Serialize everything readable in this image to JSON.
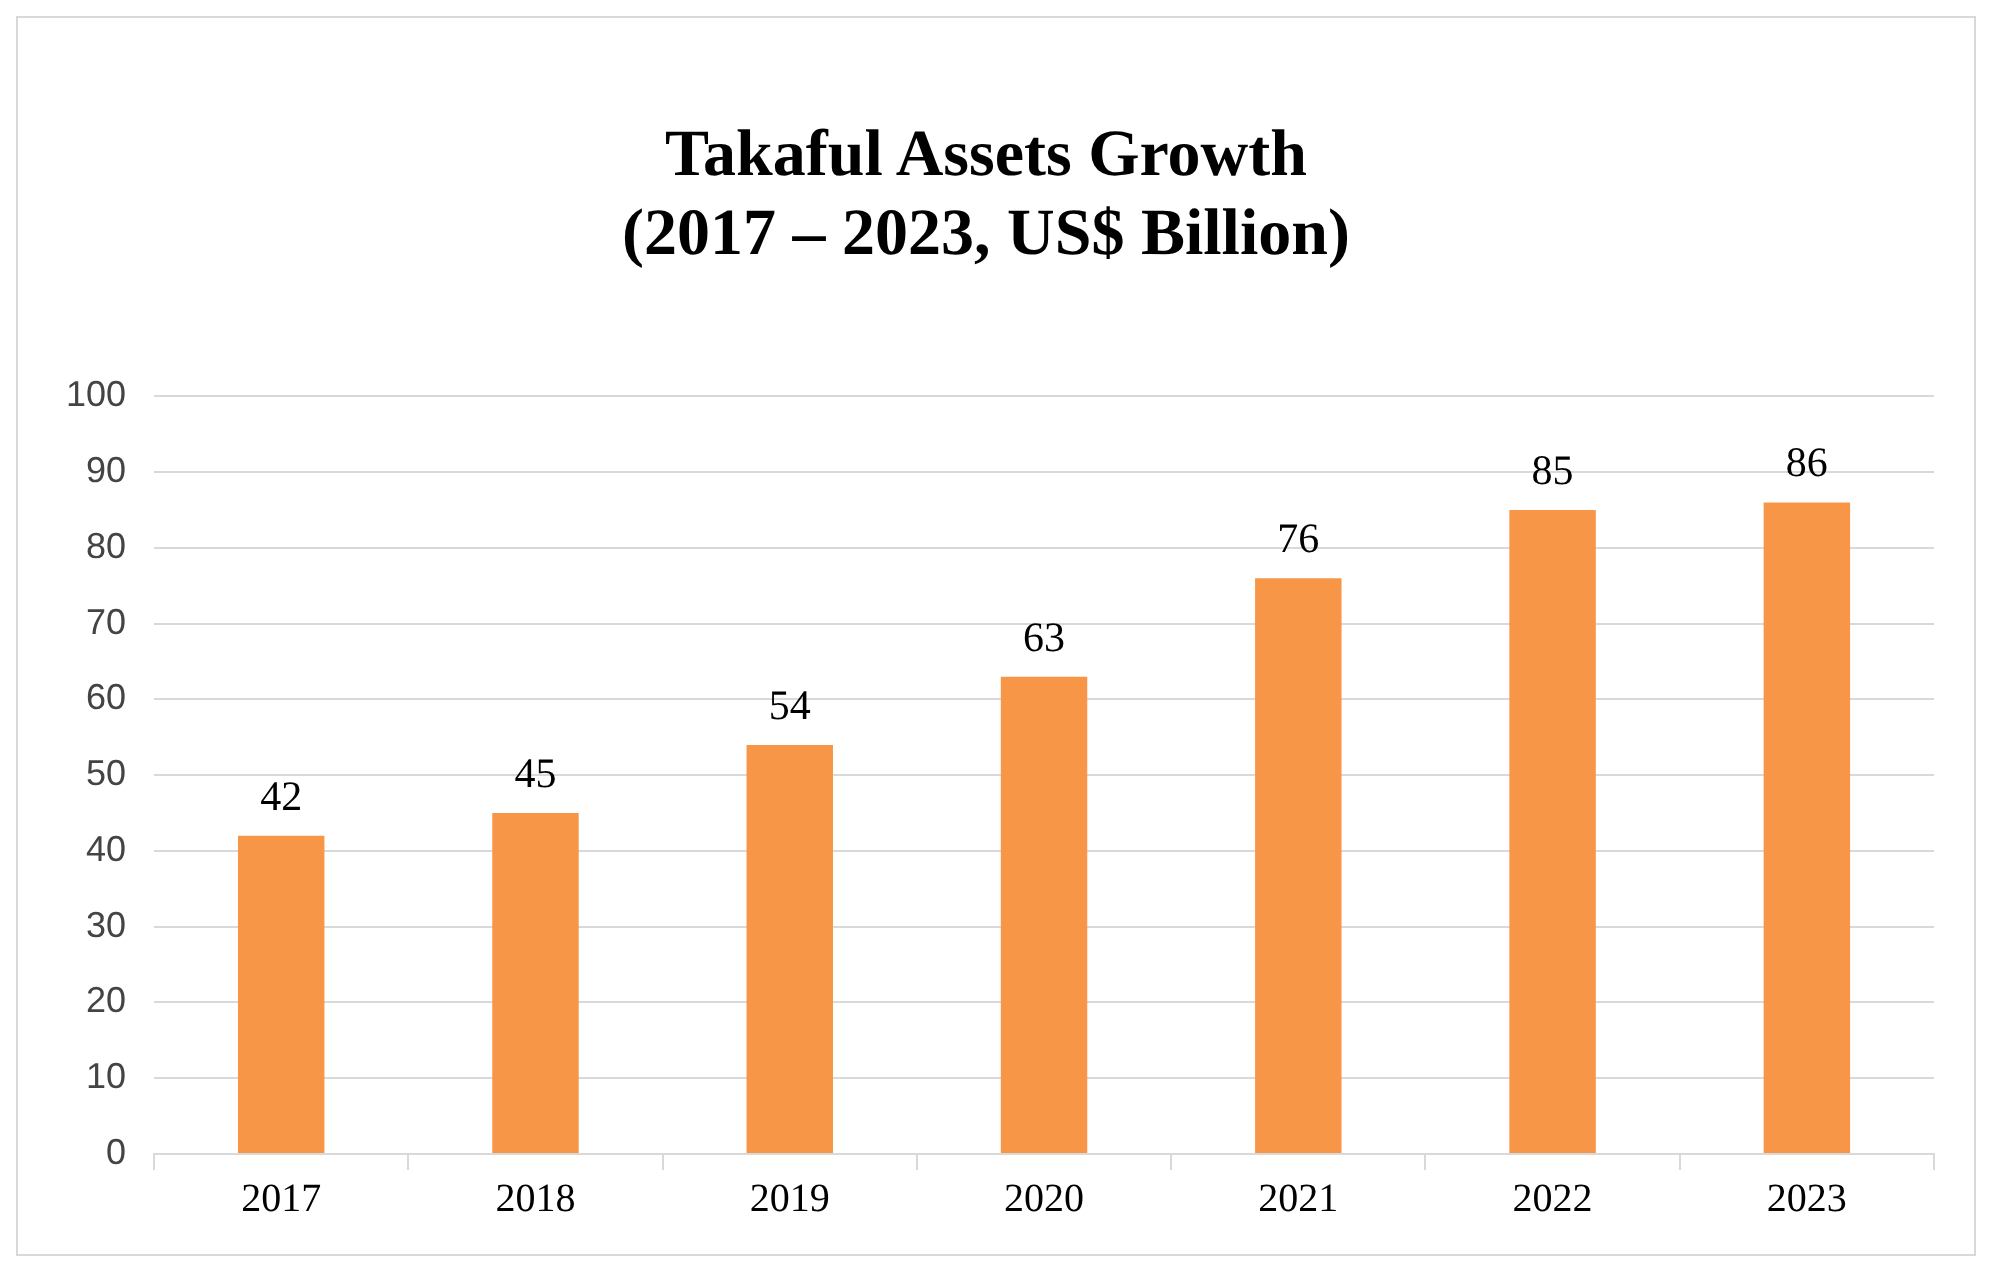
{
  "chart_data": {
    "type": "bar",
    "title": [
      "Takaful Assets Growth",
      "(2017 – 2023, US$ Billion)"
    ],
    "categories": [
      "2017",
      "2018",
      "2019",
      "2020",
      "2021",
      "2022",
      "2023"
    ],
    "values": [
      42,
      45,
      54,
      63,
      76,
      85,
      86
    ],
    "color": "#f79646",
    "ylim": [
      0,
      100
    ],
    "yticks": [
      0,
      10,
      20,
      30,
      40,
      50,
      60,
      70,
      80,
      90,
      100
    ],
    "grid": "y",
    "legend": false,
    "data_labels": true
  }
}
